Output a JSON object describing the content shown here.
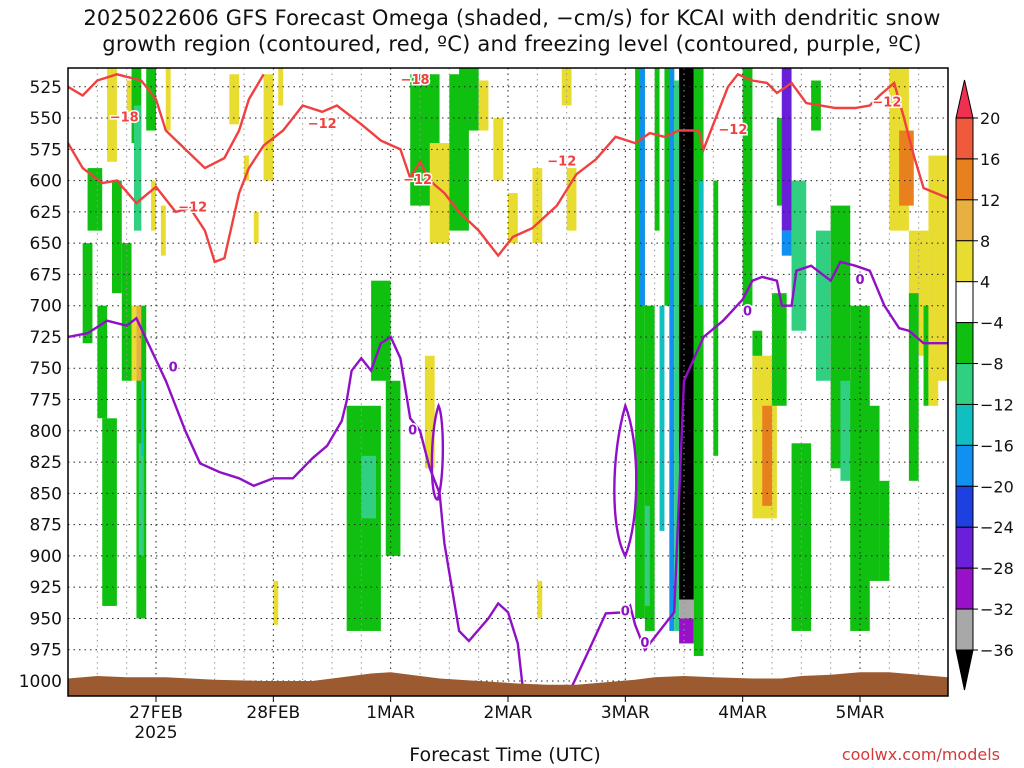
{
  "title_line1": "2025022606 GFS Forecast Omega (shaded, −cm/s) for KCAI with dendritic snow",
  "title_line2": "growth region (contoured, red, ºC) and freezing level (contoured, purple, ºC)",
  "credit": "coolwx.com/models",
  "chart_data": {
    "type": "heatmap",
    "title": "2025022606 GFS Forecast Omega (shaded, −cm/s) for KCAI with dendritic snow growth region (contoured, red, ºC) and freezing level (contoured, purple, ºC)",
    "xlabel": "Forecast Time (UTC)",
    "ylabel": "",
    "x_ticks": [
      {
        "label": "27FEB",
        "sublabel": "2025",
        "hour": 18
      },
      {
        "label": "28FEB",
        "sublabel": "",
        "hour": 42
      },
      {
        "label": "1MAR",
        "sublabel": "",
        "hour": 66
      },
      {
        "label": "2MAR",
        "sublabel": "",
        "hour": 90
      },
      {
        "label": "3MAR",
        "sublabel": "",
        "hour": 114
      },
      {
        "label": "4MAR",
        "sublabel": "",
        "hour": 138
      },
      {
        "label": "5MAR",
        "sublabel": "",
        "hour": 162
      }
    ],
    "x_range_hours": [
      0,
      180
    ],
    "y_range_hPa": [
      510,
      1012
    ],
    "y_ticks": [
      525,
      550,
      575,
      600,
      625,
      650,
      675,
      700,
      725,
      750,
      775,
      800,
      825,
      850,
      875,
      900,
      925,
      950,
      975,
      1000
    ],
    "grid": true,
    "colorbar": {
      "labels": [
        "20",
        "16",
        "12",
        "8",
        "4",
        "−4",
        "−8",
        "−12",
        "−16",
        "−20",
        "−24",
        "−28",
        "−32",
        "−36"
      ],
      "colors": [
        "#f03050",
        "#f05a3c",
        "#e8801e",
        "#e8b040",
        "#e8dc30",
        "#ffffff",
        "#10c010",
        "#30d080",
        "#10c0c0",
        "#1090f0",
        "#1e40e0",
        "#6a20d8",
        "#9810c8",
        "#a8a8a8",
        "#000000"
      ]
    },
    "dgz_contour_labels": [
      "−12",
      "−18"
    ],
    "freezing_contour_label": "0",
    "dgz_color": "#f04040",
    "freezing_color": "#9010c8",
    "terrain_color": "#9c5a30",
    "freezing_level": [
      {
        "hour": 0,
        "hPa": 725
      },
      {
        "hour": 4,
        "hPa": 722
      },
      {
        "hour": 8,
        "hPa": 712
      },
      {
        "hour": 12,
        "hPa": 716
      },
      {
        "hour": 14,
        "hPa": 710
      },
      {
        "hour": 17,
        "hPa": 735
      },
      {
        "hour": 20,
        "hPa": 760
      },
      {
        "hour": 24,
        "hPa": 800
      },
      {
        "hour": 27,
        "hPa": 826
      },
      {
        "hour": 31,
        "hPa": 833
      },
      {
        "hour": 35,
        "hPa": 838
      },
      {
        "hour": 38,
        "hPa": 844
      },
      {
        "hour": 42,
        "hPa": 838
      },
      {
        "hour": 46,
        "hPa": 838
      },
      {
        "hour": 50,
        "hPa": 822
      },
      {
        "hour": 53,
        "hPa": 812
      },
      {
        "hour": 56,
        "hPa": 792
      },
      {
        "hour": 57,
        "hPa": 776
      },
      {
        "hour": 58,
        "hPa": 752
      },
      {
        "hour": 60,
        "hPa": 742
      },
      {
        "hour": 62,
        "hPa": 752
      },
      {
        "hour": 64,
        "hPa": 730
      },
      {
        "hour": 66,
        "hPa": 725
      },
      {
        "hour": 68,
        "hPa": 742
      },
      {
        "hour": 70,
        "hPa": 790
      },
      {
        "hour": 72,
        "hPa": 800
      },
      {
        "hour": 74,
        "hPa": 830
      },
      {
        "hour": 76,
        "hPa": 850
      },
      {
        "hour": 77,
        "hPa": 890
      },
      {
        "hour": 80,
        "hPa": 960
      },
      {
        "hour": 82,
        "hPa": 968
      },
      {
        "hour": 86,
        "hPa": 950
      },
      {
        "hour": 88,
        "hPa": 938
      },
      {
        "hour": 90,
        "hPa": 945
      },
      {
        "hour": 92,
        "hPa": 970
      },
      {
        "hour": 93,
        "hPa": 1005
      },
      {
        "hour": 103,
        "hPa": 1005
      },
      {
        "hour": 106,
        "hPa": 980
      },
      {
        "hour": 110,
        "hPa": 946
      },
      {
        "hour": 114,
        "hPa": 945
      },
      {
        "hour": 115,
        "hPa": 940
      },
      {
        "hour": 116,
        "hPa": 955
      },
      {
        "hour": 118,
        "hPa": 975
      },
      {
        "hour": 120,
        "hPa": 965
      },
      {
        "hour": 124,
        "hPa": 945
      },
      {
        "hour": 126,
        "hPa": 760
      },
      {
        "hour": 130,
        "hPa": 725
      },
      {
        "hour": 134,
        "hPa": 712
      },
      {
        "hour": 138,
        "hPa": 695
      },
      {
        "hour": 140,
        "hPa": 680
      },
      {
        "hour": 142,
        "hPa": 677
      },
      {
        "hour": 145,
        "hPa": 680
      },
      {
        "hour": 146,
        "hPa": 700
      },
      {
        "hour": 148,
        "hPa": 700
      },
      {
        "hour": 149,
        "hPa": 672
      },
      {
        "hour": 152,
        "hPa": 668
      },
      {
        "hour": 156,
        "hPa": 680
      },
      {
        "hour": 158,
        "hPa": 665
      },
      {
        "hour": 161,
        "hPa": 668
      },
      {
        "hour": 164,
        "hPa": 672
      },
      {
        "hour": 167,
        "hPa": 700
      },
      {
        "hour": 170,
        "hPa": 718
      },
      {
        "hour": 172,
        "hPa": 720
      },
      {
        "hour": 175,
        "hPa": 730
      },
      {
        "hour": 180,
        "hPa": 730
      }
    ],
    "dgz_minus12": [
      {
        "hour": 0,
        "hPa": 570
      },
      {
        "hour": 3,
        "hPa": 590
      },
      {
        "hour": 7,
        "hPa": 602
      },
      {
        "hour": 10,
        "hPa": 600
      },
      {
        "hour": 14,
        "hPa": 618
      },
      {
        "hour": 18,
        "hPa": 605
      },
      {
        "hour": 20,
        "hPa": 615
      },
      {
        "hour": 22,
        "hPa": 625
      },
      {
        "hour": 25,
        "hPa": 622
      },
      {
        "hour": 28,
        "hPa": 640
      },
      {
        "hour": 30,
        "hPa": 665
      },
      {
        "hour": 32,
        "hPa": 662
      },
      {
        "hour": 35,
        "hPa": 610
      },
      {
        "hour": 37,
        "hPa": 590
      },
      {
        "hour": 40,
        "hPa": 572
      },
      {
        "hour": 44,
        "hPa": 560
      },
      {
        "hour": 48,
        "hPa": 540
      },
      {
        "hour": 52,
        "hPa": 545
      },
      {
        "hour": 55,
        "hPa": 540
      },
      {
        "hour": 60,
        "hPa": 555
      },
      {
        "hour": 64,
        "hPa": 568
      },
      {
        "hour": 68,
        "hPa": 575
      },
      {
        "hour": 70,
        "hPa": 598
      },
      {
        "hour": 72,
        "hPa": 585
      },
      {
        "hour": 74,
        "hPa": 600
      },
      {
        "hour": 77,
        "hPa": 610
      },
      {
        "hour": 80,
        "hPa": 625
      },
      {
        "hour": 84,
        "hPa": 640
      },
      {
        "hour": 88,
        "hPa": 660
      },
      {
        "hour": 91,
        "hPa": 645
      },
      {
        "hour": 95,
        "hPa": 638
      },
      {
        "hour": 100,
        "hPa": 620
      },
      {
        "hour": 104,
        "hPa": 595
      },
      {
        "hour": 108,
        "hPa": 583
      },
      {
        "hour": 112,
        "hPa": 565
      },
      {
        "hour": 116,
        "hPa": 570
      },
      {
        "hour": 119,
        "hPa": 562
      },
      {
        "hour": 122,
        "hPa": 565
      },
      {
        "hour": 125,
        "hPa": 560
      },
      {
        "hour": 129,
        "hPa": 560
      },
      {
        "hour": 130,
        "hPa": 575
      },
      {
        "hour": 132,
        "hPa": 555
      },
      {
        "hour": 133,
        "hPa": 545
      },
      {
        "hour": 135,
        "hPa": 525
      },
      {
        "hour": 137,
        "hPa": 515
      },
      {
        "hour": 140,
        "hPa": 520
      },
      {
        "hour": 143,
        "hPa": 522
      },
      {
        "hour": 145,
        "hPa": 530
      },
      {
        "hour": 148,
        "hPa": 522
      },
      {
        "hour": 151,
        "hPa": 538
      },
      {
        "hour": 157,
        "hPa": 542
      },
      {
        "hour": 161,
        "hPa": 542
      },
      {
        "hour": 164,
        "hPa": 540
      },
      {
        "hour": 166,
        "hPa": 532
      },
      {
        "hour": 169,
        "hPa": 522
      },
      {
        "hour": 171,
        "hPa": 550
      },
      {
        "hour": 173,
        "hPa": 580
      },
      {
        "hour": 175,
        "hPa": 606
      },
      {
        "hour": 180,
        "hPa": 614
      }
    ],
    "dgz_minus18": [
      {
        "hour": 0,
        "hPa": 525
      },
      {
        "hour": 3,
        "hPa": 532
      },
      {
        "hour": 6,
        "hPa": 520
      },
      {
        "hour": 10,
        "hPa": 515
      },
      {
        "hour": 15,
        "hPa": 520
      },
      {
        "hour": 18,
        "hPa": 535
      },
      {
        "hour": 20,
        "hPa": 560
      },
      {
        "hour": 24,
        "hPa": 575
      },
      {
        "hour": 28,
        "hPa": 590
      },
      {
        "hour": 32,
        "hPa": 582
      },
      {
        "hour": 35,
        "hPa": 560
      },
      {
        "hour": 37,
        "hPa": 535
      },
      {
        "hour": 40,
        "hPa": 515
      }
    ],
    "omega_regions_note": "shaded omega cells as displayed"
  }
}
